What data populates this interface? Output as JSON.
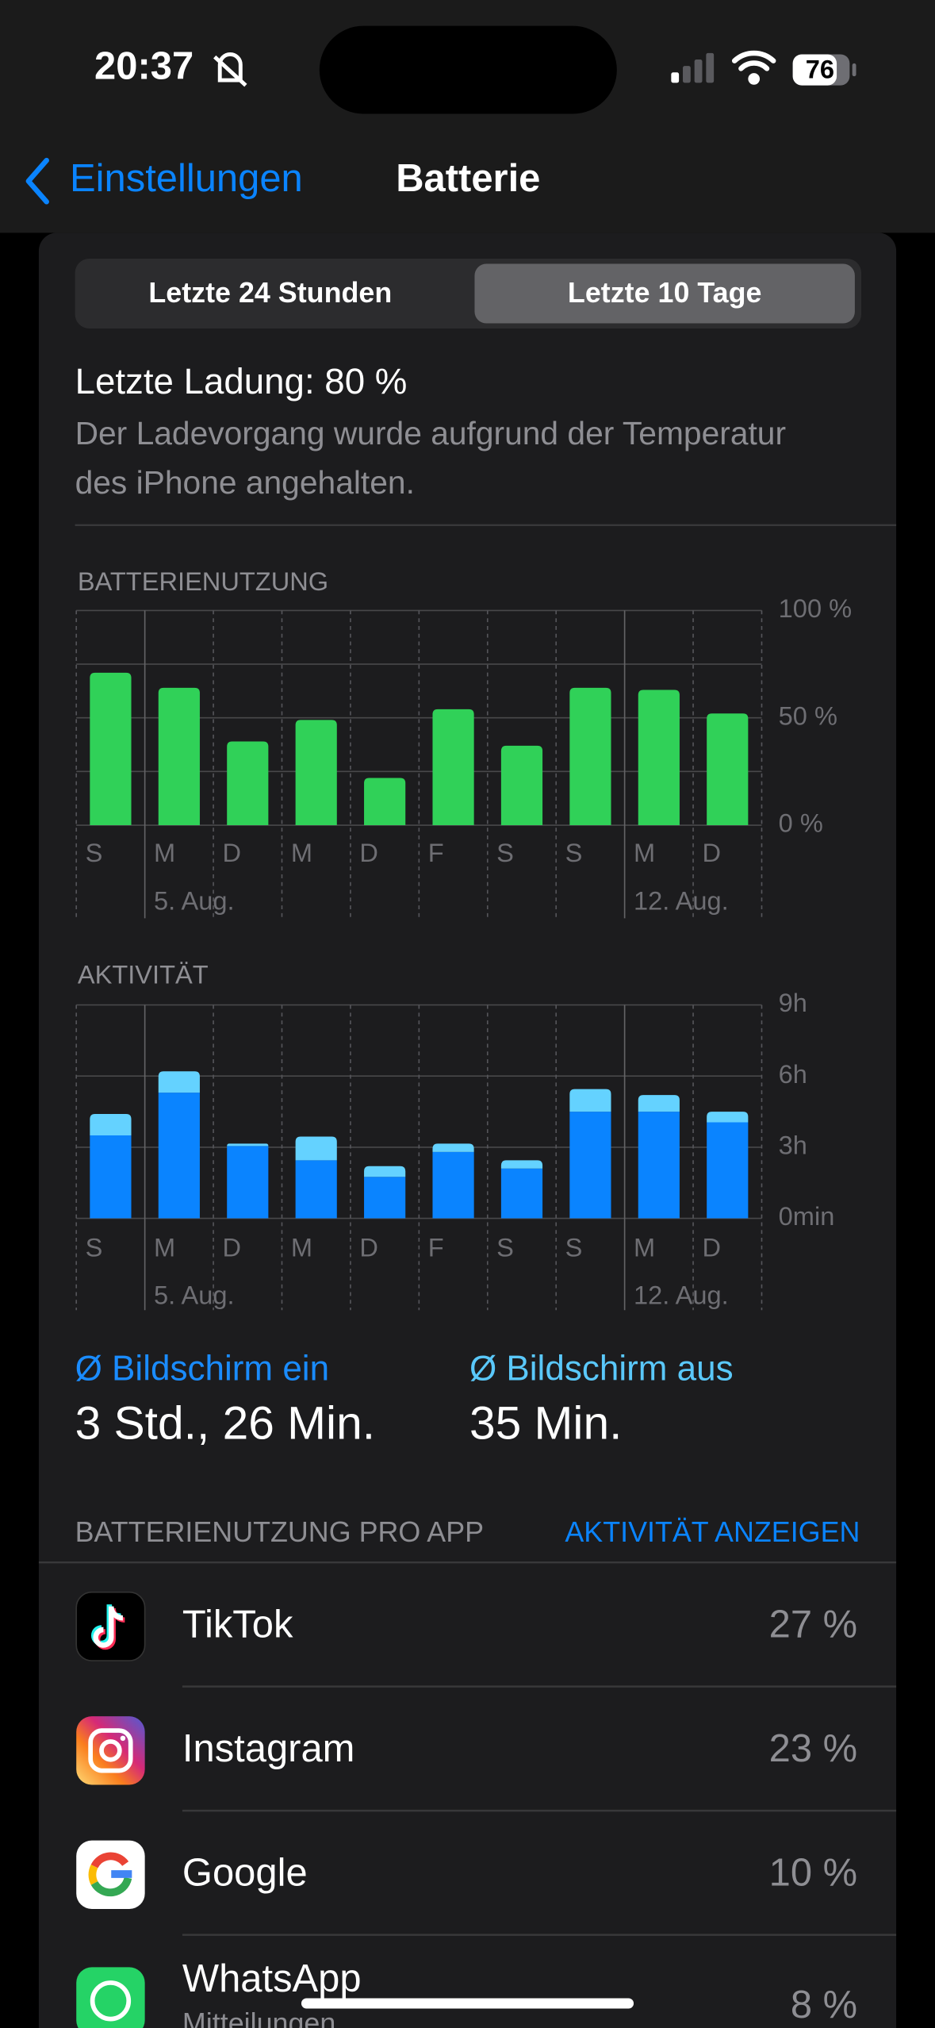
{
  "status_bar": {
    "time": "20:37",
    "battery": "76"
  },
  "nav": {
    "back": "Einstellungen",
    "title": "Batterie"
  },
  "segments": [
    "Letzte 24 Stunden",
    "Letzte 10 Tage"
  ],
  "last_charge": {
    "title": "Letzte Ladung: 80 %",
    "description_lines": [
      "Der Ladevorgang wurde aufgrund der Temperatur",
      "des iPhone angehalten."
    ]
  },
  "chart_data": [
    {
      "type": "bar",
      "title": "BATTERIENUTZUNG",
      "categories": [
        "S",
        "M",
        "D",
        "M",
        "D",
        "F",
        "S",
        "S",
        "M",
        "D"
      ],
      "dates": [
        null,
        "5. Aug.",
        null,
        null,
        null,
        null,
        null,
        null,
        "12. Aug.",
        null
      ],
      "values": [
        71,
        64,
        39,
        49,
        22,
        54,
        37,
        64,
        63,
        52
      ],
      "color": "#30d158",
      "ylim": [
        0,
        100
      ],
      "yticks": [
        {
          "value": 0,
          "label": "0 %"
        },
        {
          "value": 50,
          "label": "50 %"
        },
        {
          "value": 100,
          "label": "100 %"
        }
      ],
      "minor_grid": true
    },
    {
      "type": "stacked_bar",
      "title": "AKTIVITÄT",
      "categories": [
        "S",
        "M",
        "D",
        "M",
        "D",
        "F",
        "S",
        "S",
        "M",
        "D"
      ],
      "dates": [
        null,
        "5. Aug.",
        null,
        null,
        null,
        null,
        null,
        null,
        "12. Aug.",
        null
      ],
      "series": [
        {
          "color": "#0a84ff",
          "values": [
            3.5,
            5.3,
            3.05,
            2.45,
            1.75,
            2.8,
            2.1,
            4.5,
            4.5,
            4.05
          ]
        },
        {
          "color": "#64d2ff",
          "values": [
            0.9,
            0.9,
            0.1,
            1.0,
            0.45,
            0.35,
            0.35,
            0.95,
            0.7,
            0.45
          ]
        }
      ],
      "ylim": [
        0,
        9
      ],
      "yticks": [
        {
          "value": 0,
          "label": "0min"
        },
        {
          "value": 3,
          "label": "3h"
        },
        {
          "value": 6,
          "label": "6h"
        },
        {
          "value": 9,
          "label": "9h"
        }
      ],
      "minor_grid": false
    }
  ],
  "averages": [
    {
      "label": "Ø Bildschirm ein",
      "value": "3 Std., 26 Min."
    },
    {
      "label": "Ø Bildschirm aus",
      "value": "35 Min."
    }
  ],
  "apps_section": {
    "title": "BATTERIENUTZUNG PRO APP",
    "action": "AKTIVITÄT ANZEIGEN"
  },
  "apps": [
    {
      "name": "TikTok",
      "share": "27 %"
    },
    {
      "name": "Instagram",
      "share": "23 %"
    },
    {
      "name": "Google",
      "share": "10 %"
    },
    {
      "name": "WhatsApp",
      "subtitle": "Mitteilungen",
      "share": "8 %"
    }
  ]
}
